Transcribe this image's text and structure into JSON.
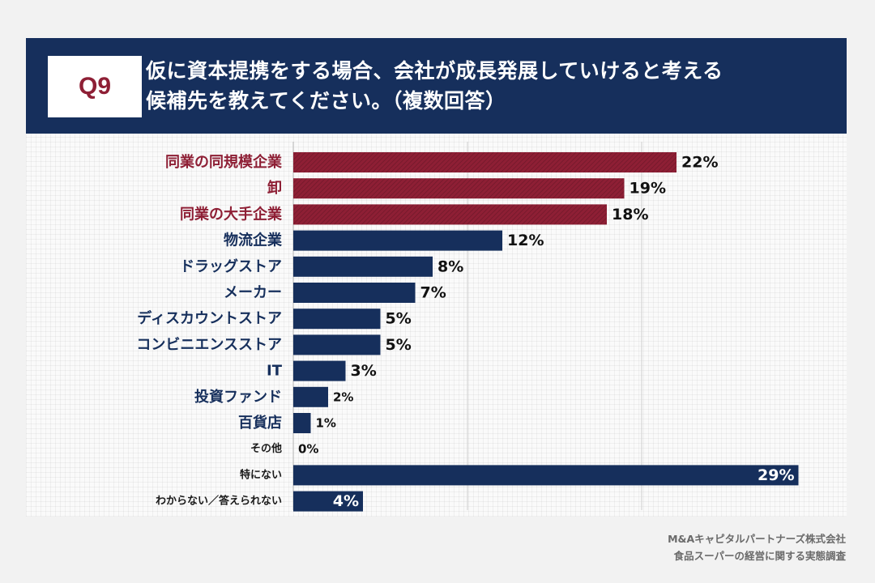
{
  "header": {
    "badge": "Q9",
    "question_line1": "仮に資本提携をする場合、会社が成長発展していけると考える",
    "question_line2": "候補先を教えてください。（複数回答）"
  },
  "footer": {
    "line1": "M&Aキャピタルパートナーズ株式会社",
    "line2": "食品スーパーの経営に関する実態調査"
  },
  "colors": {
    "highlight": "#8e1f35",
    "primary": "#162f5c",
    "header_bg": "#162f5c"
  },
  "chart_data": {
    "type": "bar",
    "orientation": "horizontal",
    "title": "仮に資本提携をする場合、会社が成長発展していけると考える候補先を教えてください。（複数回答）",
    "unit": "%",
    "xlim": [
      0,
      29
    ],
    "grid": true,
    "categories": [
      "同業の同規模企業",
      "卸",
      "同業の大手企業",
      "物流企業",
      "ドラッグストア",
      "メーカー",
      "ディスカウントストア",
      "コンビニエンスストア",
      "IT",
      "投資ファンド",
      "百貨店",
      "その他",
      "特にない",
      "わからない／答えられない"
    ],
    "values": [
      22,
      19,
      18,
      12,
      8,
      7,
      5,
      5,
      3,
      2,
      1,
      0,
      29,
      4
    ],
    "labels": [
      "22%",
      "19%",
      "18%",
      "12%",
      "8%",
      "7%",
      "5%",
      "5%",
      "3%",
      "2%",
      "1%",
      "0%",
      "29%",
      "4%"
    ],
    "highlighted": [
      true,
      true,
      true,
      false,
      false,
      false,
      false,
      false,
      false,
      false,
      false,
      false,
      false,
      false
    ]
  }
}
